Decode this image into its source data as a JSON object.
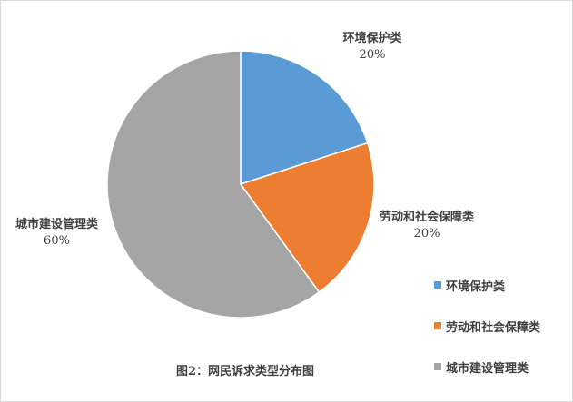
{
  "chart_data": {
    "type": "pie",
    "title": "图2：网民诉求类型分布图",
    "categories": [
      "环境保护类",
      "劳动和社会保障类",
      "城市建设管理类"
    ],
    "values": [
      20,
      20,
      60
    ],
    "value_labels": [
      "20%",
      "20%",
      "60%"
    ],
    "colors": [
      "#5b9bd5",
      "#ed7d31",
      "#a5a5a5"
    ]
  }
}
